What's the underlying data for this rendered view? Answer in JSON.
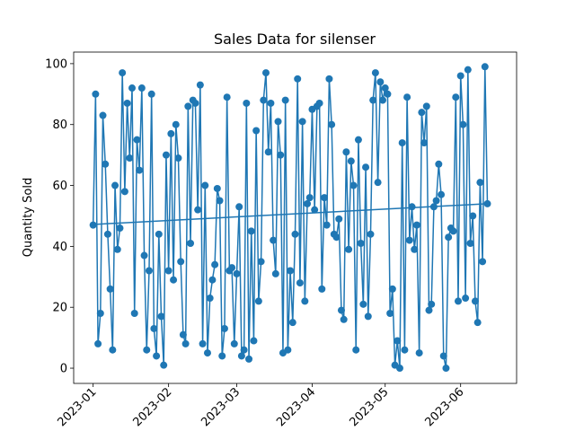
{
  "chart_data": {
    "type": "line",
    "title": "Sales Data for silenser",
    "y_label": "Quantity Sold",
    "series": [
      {
        "color": "#1f77b4",
        "marker": true,
        "x": [
          0,
          1,
          2,
          3,
          4,
          5,
          6,
          7,
          8,
          9,
          10,
          11,
          12,
          13,
          14,
          15,
          16,
          17,
          18,
          19,
          20,
          21,
          22,
          23,
          24,
          25,
          26,
          27,
          28,
          29,
          30,
          31,
          32,
          33,
          34,
          35,
          36,
          37,
          38,
          39,
          40,
          41,
          42,
          43,
          44,
          45,
          46,
          47,
          48,
          49,
          50,
          51,
          52,
          53,
          54,
          55,
          56,
          57,
          58,
          59,
          60,
          61,
          62,
          63,
          64,
          65,
          66,
          67,
          68,
          69,
          70,
          71,
          72,
          73,
          74,
          75,
          76,
          77,
          78,
          79,
          80,
          81,
          82,
          83,
          84,
          85,
          86,
          87,
          88,
          89,
          90,
          91,
          92,
          93,
          94,
          95,
          96,
          97,
          98,
          99,
          100,
          101,
          102,
          103,
          104,
          105,
          106,
          107,
          108,
          109,
          110,
          111,
          112,
          113,
          114,
          115,
          116,
          117,
          118,
          119,
          120,
          121,
          122,
          123,
          124,
          125,
          126,
          127,
          128,
          129,
          130,
          131,
          132,
          133,
          134,
          135,
          136,
          137,
          138,
          139,
          140,
          141,
          142,
          143,
          144,
          145,
          146,
          147,
          148,
          149,
          150,
          151,
          152,
          153,
          154,
          155,
          156,
          157,
          158,
          159,
          160,
          161,
          162
        ],
        "values": [
          47,
          90,
          8,
          18,
          83,
          67,
          44,
          26,
          6,
          60,
          39,
          46,
          97,
          58,
          87,
          69,
          92,
          18,
          75,
          65,
          92,
          37,
          6,
          32,
          90,
          13,
          4,
          44,
          17,
          1,
          70,
          32,
          77,
          29,
          80,
          69,
          35,
          11,
          8,
          86,
          41,
          88,
          87,
          52,
          93,
          8,
          60,
          5,
          23,
          29,
          34,
          59,
          55,
          4,
          13,
          89,
          32,
          33,
          8,
          31,
          53,
          4,
          6,
          87,
          3,
          45,
          9,
          78,
          22,
          35,
          88,
          97,
          71,
          87,
          42,
          31,
          81,
          70,
          5,
          88,
          6,
          32,
          15,
          44,
          95,
          28,
          81,
          22,
          54,
          56,
          85,
          52,
          86,
          87,
          26,
          56,
          47,
          95,
          80,
          44,
          43,
          49,
          19,
          16,
          71,
          39,
          68,
          60,
          6,
          75,
          41,
          21,
          66,
          17,
          44,
          88,
          97,
          61,
          94,
          88,
          92,
          90,
          18,
          26,
          1,
          9,
          0,
          74,
          6,
          89,
          42,
          53,
          39,
          47,
          5,
          84,
          74,
          86,
          19,
          21,
          53,
          55,
          67,
          57,
          4,
          0,
          43,
          46,
          45,
          89,
          22,
          96,
          80,
          23,
          98,
          41,
          50,
          22,
          15,
          61,
          35,
          99,
          54
        ]
      },
      {
        "color": "#1f77b4",
        "marker": false,
        "x": [
          0,
          162
        ],
        "values": [
          47.2,
          54.0
        ]
      }
    ],
    "xlim": [
      -8,
      174
    ],
    "xticks": [
      {
        "value": 0,
        "label": "2023-01"
      },
      {
        "value": 31,
        "label": "2023-02"
      },
      {
        "value": 59,
        "label": "2023-03"
      },
      {
        "value": 90,
        "label": "2023-04"
      },
      {
        "value": 120,
        "label": "2023-05"
      },
      {
        "value": 151,
        "label": "2023-06"
      }
    ],
    "ylim": [
      -5,
      103.8
    ],
    "yticks": [
      0,
      20,
      40,
      60,
      80,
      100
    ]
  }
}
